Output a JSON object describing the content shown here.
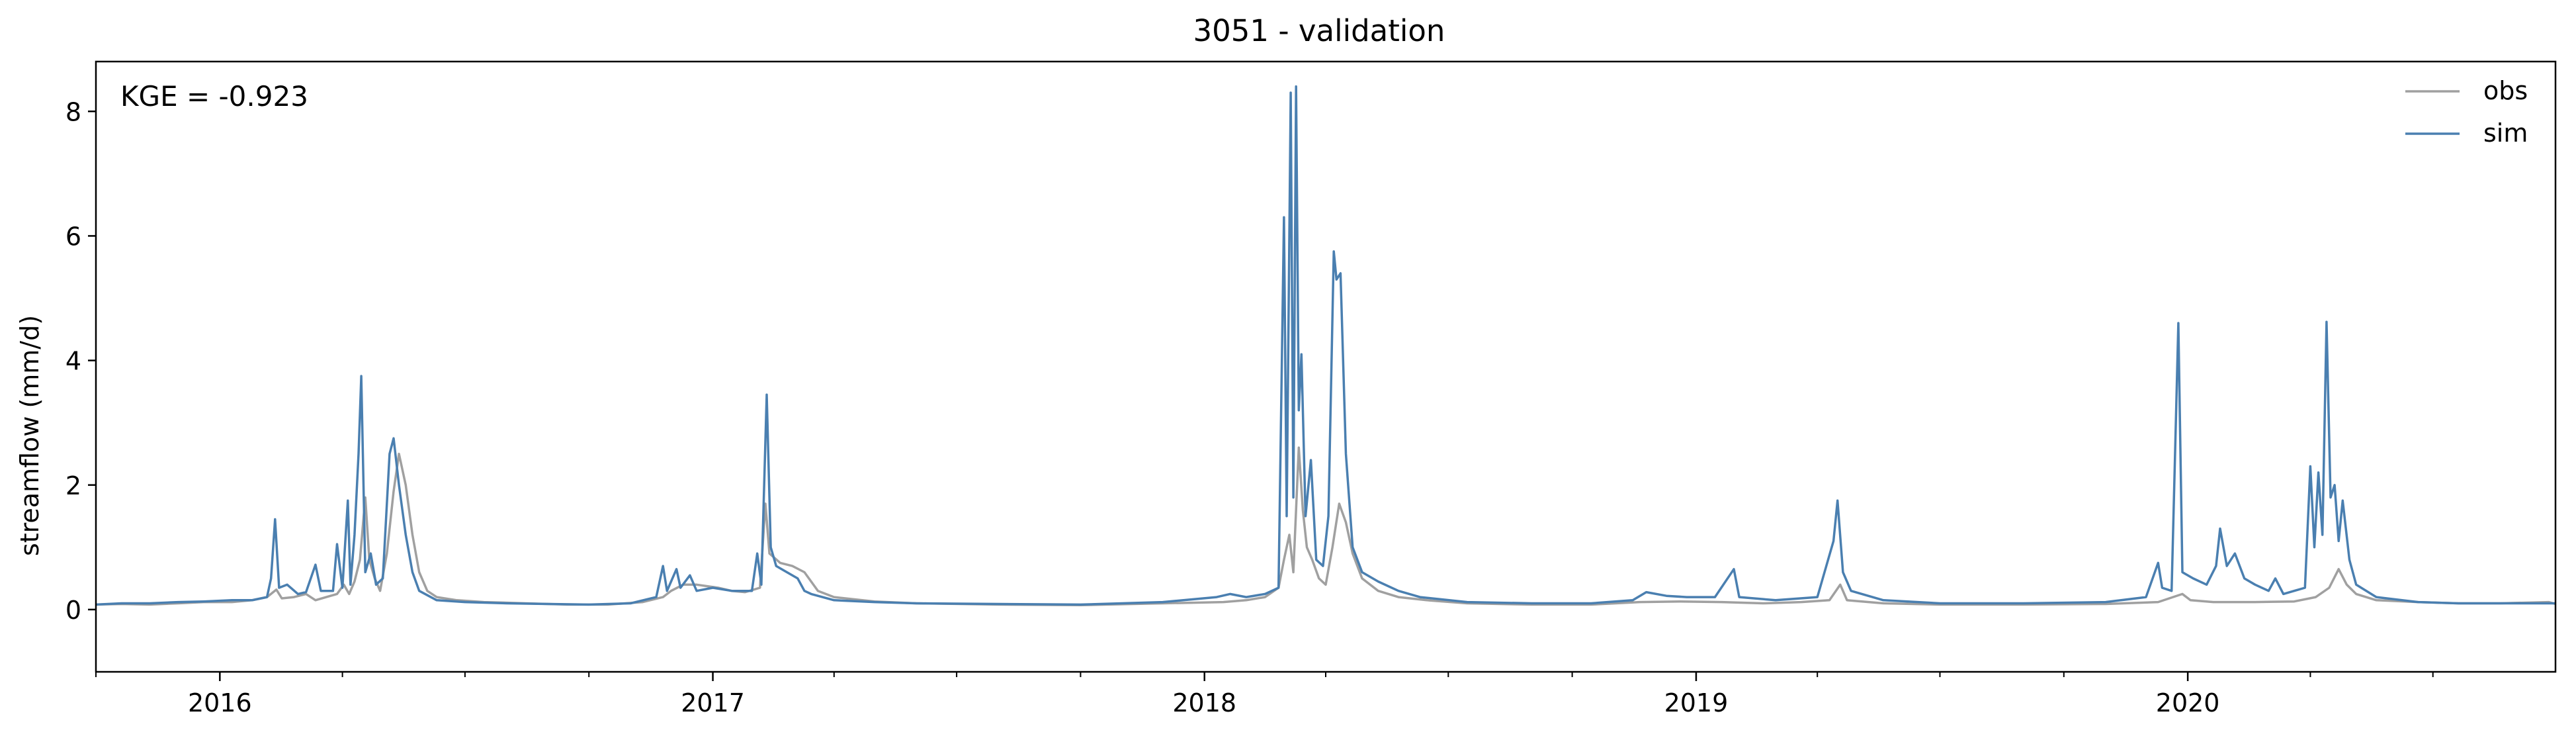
{
  "chart_data": {
    "type": "line",
    "title": "3051 - validation",
    "xlabel": "",
    "ylabel": "streamflow (mm/d)",
    "annotation": "KGE = -0.923",
    "xlim": [
      "2015-10-01",
      "2020-09-30"
    ],
    "ylim": [
      -1.0,
      8.8
    ],
    "yticks": [
      0,
      2,
      4,
      6,
      8
    ],
    "xticks": [
      {
        "date": "2016-01-01",
        "label": "2016"
      },
      {
        "date": "2017-01-01",
        "label": "2017"
      },
      {
        "date": "2018-01-01",
        "label": "2018"
      },
      {
        "date": "2019-01-01",
        "label": "2019"
      },
      {
        "date": "2020-01-01",
        "label": "2020"
      }
    ],
    "legend_position": "upper-right",
    "grid": false,
    "series": [
      {
        "name": "obs",
        "color": "#a0a0a0",
        "points": [
          [
            "2015-10-01",
            0.08
          ],
          [
            "2015-10-20",
            0.09
          ],
          [
            "2015-11-10",
            0.08
          ],
          [
            "2015-12-01",
            0.1
          ],
          [
            "2015-12-20",
            0.12
          ],
          [
            "2016-01-10",
            0.12
          ],
          [
            "2016-01-25",
            0.15
          ],
          [
            "2016-02-05",
            0.2
          ],
          [
            "2016-02-12",
            0.32
          ],
          [
            "2016-02-16",
            0.18
          ],
          [
            "2016-02-25",
            0.2
          ],
          [
            "2016-03-05",
            0.25
          ],
          [
            "2016-03-12",
            0.15
          ],
          [
            "2016-03-20",
            0.2
          ],
          [
            "2016-03-28",
            0.25
          ],
          [
            "2016-04-02",
            0.4
          ],
          [
            "2016-04-06",
            0.25
          ],
          [
            "2016-04-10",
            0.45
          ],
          [
            "2016-04-14",
            0.8
          ],
          [
            "2016-04-18",
            1.8
          ],
          [
            "2016-04-21",
            0.8
          ],
          [
            "2016-04-25",
            0.5
          ],
          [
            "2016-04-29",
            0.3
          ],
          [
            "2016-05-04",
            0.9
          ],
          [
            "2016-05-09",
            1.9
          ],
          [
            "2016-05-13",
            2.5
          ],
          [
            "2016-05-18",
            2.0
          ],
          [
            "2016-05-23",
            1.2
          ],
          [
            "2016-05-28",
            0.6
          ],
          [
            "2016-06-03",
            0.3
          ],
          [
            "2016-06-10",
            0.2
          ],
          [
            "2016-06-25",
            0.15
          ],
          [
            "2016-07-15",
            0.12
          ],
          [
            "2016-08-15",
            0.1
          ],
          [
            "2016-09-15",
            0.08
          ],
          [
            "2016-10-15",
            0.08
          ],
          [
            "2016-11-10",
            0.12
          ],
          [
            "2016-11-25",
            0.2
          ],
          [
            "2016-12-01",
            0.3
          ],
          [
            "2016-12-10",
            0.4
          ],
          [
            "2016-12-20",
            0.4
          ],
          [
            "2017-01-05",
            0.35
          ],
          [
            "2017-01-15",
            0.3
          ],
          [
            "2017-01-25",
            0.28
          ],
          [
            "2017-02-05",
            0.35
          ],
          [
            "2017-02-09",
            1.7
          ],
          [
            "2017-02-12",
            0.9
          ],
          [
            "2017-02-20",
            0.75
          ],
          [
            "2017-03-01",
            0.7
          ],
          [
            "2017-03-10",
            0.6
          ],
          [
            "2017-03-20",
            0.3
          ],
          [
            "2017-04-01",
            0.2
          ],
          [
            "2017-05-01",
            0.13
          ],
          [
            "2017-06-01",
            0.1
          ],
          [
            "2017-08-01",
            0.08
          ],
          [
            "2017-10-01",
            0.07
          ],
          [
            "2017-12-01",
            0.1
          ],
          [
            "2018-01-15",
            0.12
          ],
          [
            "2018-02-01",
            0.15
          ],
          [
            "2018-02-15",
            0.2
          ],
          [
            "2018-02-25",
            0.35
          ],
          [
            "2018-03-01",
            0.8
          ],
          [
            "2018-03-05",
            1.2
          ],
          [
            "2018-03-08",
            0.6
          ],
          [
            "2018-03-12",
            2.6
          ],
          [
            "2018-03-15",
            1.6
          ],
          [
            "2018-03-18",
            1.0
          ],
          [
            "2018-03-22",
            0.8
          ],
          [
            "2018-03-27",
            0.5
          ],
          [
            "2018-04-01",
            0.4
          ],
          [
            "2018-04-06",
            1.0
          ],
          [
            "2018-04-11",
            1.7
          ],
          [
            "2018-04-16",
            1.4
          ],
          [
            "2018-04-21",
            0.9
          ],
          [
            "2018-04-28",
            0.5
          ],
          [
            "2018-05-10",
            0.3
          ],
          [
            "2018-05-25",
            0.2
          ],
          [
            "2018-06-15",
            0.15
          ],
          [
            "2018-07-15",
            0.1
          ],
          [
            "2018-09-01",
            0.08
          ],
          [
            "2018-10-15",
            0.08
          ],
          [
            "2018-11-20",
            0.12
          ],
          [
            "2018-12-20",
            0.13
          ],
          [
            "2019-01-20",
            0.12
          ],
          [
            "2019-02-20",
            0.1
          ],
          [
            "2019-03-20",
            0.12
          ],
          [
            "2019-04-10",
            0.15
          ],
          [
            "2019-04-18",
            0.4
          ],
          [
            "2019-04-23",
            0.15
          ],
          [
            "2019-05-20",
            0.1
          ],
          [
            "2019-07-01",
            0.08
          ],
          [
            "2019-09-01",
            0.08
          ],
          [
            "2019-11-01",
            0.09
          ],
          [
            "2019-12-10",
            0.12
          ],
          [
            "2019-12-28",
            0.25
          ],
          [
            "2020-01-03",
            0.15
          ],
          [
            "2020-01-20",
            0.12
          ],
          [
            "2020-02-20",
            0.12
          ],
          [
            "2020-03-20",
            0.13
          ],
          [
            "2020-04-05",
            0.2
          ],
          [
            "2020-04-15",
            0.35
          ],
          [
            "2020-04-22",
            0.65
          ],
          [
            "2020-04-28",
            0.4
          ],
          [
            "2020-05-05",
            0.25
          ],
          [
            "2020-05-20",
            0.15
          ],
          [
            "2020-06-20",
            0.12
          ],
          [
            "2020-07-20",
            0.1
          ],
          [
            "2020-08-20",
            0.1
          ],
          [
            "2020-09-25",
            0.12
          ],
          [
            "2020-09-30",
            0.09
          ]
        ]
      },
      {
        "name": "sim",
        "color": "#4a7fb0",
        "points": [
          [
            "2015-10-01",
            0.08
          ],
          [
            "2015-10-20",
            0.1
          ],
          [
            "2015-11-10",
            0.1
          ],
          [
            "2015-12-01",
            0.12
          ],
          [
            "2015-12-20",
            0.13
          ],
          [
            "2016-01-10",
            0.15
          ],
          [
            "2016-01-25",
            0.15
          ],
          [
            "2016-02-05",
            0.2
          ],
          [
            "2016-02-08",
            0.5
          ],
          [
            "2016-02-11",
            1.45
          ],
          [
            "2016-02-14",
            0.35
          ],
          [
            "2016-02-20",
            0.4
          ],
          [
            "2016-02-28",
            0.25
          ],
          [
            "2016-03-05",
            0.28
          ],
          [
            "2016-03-12",
            0.72
          ],
          [
            "2016-03-16",
            0.3
          ],
          [
            "2016-03-25",
            0.3
          ],
          [
            "2016-03-28",
            1.05
          ],
          [
            "2016-04-01",
            0.35
          ],
          [
            "2016-04-05",
            1.75
          ],
          [
            "2016-04-07",
            0.4
          ],
          [
            "2016-04-10",
            1.2
          ],
          [
            "2016-04-13",
            2.5
          ],
          [
            "2016-04-15",
            3.75
          ],
          [
            "2016-04-18",
            0.6
          ],
          [
            "2016-04-22",
            0.9
          ],
          [
            "2016-04-26",
            0.4
          ],
          [
            "2016-05-01",
            0.5
          ],
          [
            "2016-05-06",
            2.5
          ],
          [
            "2016-05-09",
            2.75
          ],
          [
            "2016-05-13",
            2.0
          ],
          [
            "2016-05-18",
            1.2
          ],
          [
            "2016-05-23",
            0.6
          ],
          [
            "2016-05-28",
            0.3
          ],
          [
            "2016-06-10",
            0.15
          ],
          [
            "2016-07-01",
            0.12
          ],
          [
            "2016-08-01",
            0.1
          ],
          [
            "2016-09-01",
            0.09
          ],
          [
            "2016-10-01",
            0.08
          ],
          [
            "2016-11-01",
            0.1
          ],
          [
            "2016-11-20",
            0.2
          ],
          [
            "2016-11-25",
            0.7
          ],
          [
            "2016-11-28",
            0.3
          ],
          [
            "2016-12-05",
            0.65
          ],
          [
            "2016-12-08",
            0.35
          ],
          [
            "2016-12-15",
            0.55
          ],
          [
            "2016-12-20",
            0.3
          ],
          [
            "2017-01-01",
            0.35
          ],
          [
            "2017-01-15",
            0.3
          ],
          [
            "2017-01-30",
            0.3
          ],
          [
            "2017-02-03",
            0.9
          ],
          [
            "2017-02-06",
            0.4
          ],
          [
            "2017-02-10",
            3.45
          ],
          [
            "2017-02-13",
            1.0
          ],
          [
            "2017-02-17",
            0.7
          ],
          [
            "2017-02-25",
            0.6
          ],
          [
            "2017-03-05",
            0.5
          ],
          [
            "2017-03-10",
            0.3
          ],
          [
            "2017-03-15",
            0.25
          ],
          [
            "2017-04-01",
            0.15
          ],
          [
            "2017-05-01",
            0.12
          ],
          [
            "2017-06-01",
            0.1
          ],
          [
            "2017-08-01",
            0.09
          ],
          [
            "2017-10-01",
            0.08
          ],
          [
            "2017-12-01",
            0.12
          ],
          [
            "2018-01-10",
            0.2
          ],
          [
            "2018-01-20",
            0.25
          ],
          [
            "2018-02-01",
            0.2
          ],
          [
            "2018-02-15",
            0.25
          ],
          [
            "2018-02-25",
            0.35
          ],
          [
            "2018-03-01",
            6.3
          ],
          [
            "2018-03-03",
            1.5
          ],
          [
            "2018-03-06",
            8.3
          ],
          [
            "2018-03-08",
            1.8
          ],
          [
            "2018-03-10",
            8.4
          ],
          [
            "2018-03-12",
            3.2
          ],
          [
            "2018-03-14",
            4.1
          ],
          [
            "2018-03-17",
            1.5
          ],
          [
            "2018-03-21",
            2.4
          ],
          [
            "2018-03-25",
            0.8
          ],
          [
            "2018-03-30",
            0.7
          ],
          [
            "2018-04-03",
            1.5
          ],
          [
            "2018-04-07",
            5.75
          ],
          [
            "2018-04-09",
            5.3
          ],
          [
            "2018-04-12",
            5.4
          ],
          [
            "2018-04-16",
            2.5
          ],
          [
            "2018-04-21",
            1.0
          ],
          [
            "2018-04-28",
            0.6
          ],
          [
            "2018-05-10",
            0.45
          ],
          [
            "2018-05-25",
            0.3
          ],
          [
            "2018-06-10",
            0.2
          ],
          [
            "2018-07-15",
            0.12
          ],
          [
            "2018-09-01",
            0.1
          ],
          [
            "2018-10-15",
            0.1
          ],
          [
            "2018-11-15",
            0.15
          ],
          [
            "2018-11-25",
            0.28
          ],
          [
            "2018-12-10",
            0.22
          ],
          [
            "2018-12-25",
            0.2
          ],
          [
            "2019-01-15",
            0.2
          ],
          [
            "2019-01-29",
            0.65
          ],
          [
            "2019-02-02",
            0.2
          ],
          [
            "2019-03-01",
            0.15
          ],
          [
            "2019-04-01",
            0.2
          ],
          [
            "2019-04-13",
            1.1
          ],
          [
            "2019-04-16",
            1.75
          ],
          [
            "2019-04-20",
            0.6
          ],
          [
            "2019-04-26",
            0.3
          ],
          [
            "2019-05-20",
            0.15
          ],
          [
            "2019-07-01",
            0.1
          ],
          [
            "2019-09-01",
            0.1
          ],
          [
            "2019-11-01",
            0.12
          ],
          [
            "2019-12-01",
            0.2
          ],
          [
            "2019-12-10",
            0.75
          ],
          [
            "2019-12-13",
            0.35
          ],
          [
            "2019-12-20",
            0.3
          ],
          [
            "2019-12-25",
            4.6
          ],
          [
            "2019-12-28",
            0.6
          ],
          [
            "2020-01-05",
            0.5
          ],
          [
            "2020-01-15",
            0.4
          ],
          [
            "2020-01-22",
            0.7
          ],
          [
            "2020-01-25",
            1.3
          ],
          [
            "2020-01-30",
            0.7
          ],
          [
            "2020-02-05",
            0.9
          ],
          [
            "2020-02-12",
            0.5
          ],
          [
            "2020-02-20",
            0.4
          ],
          [
            "2020-03-01",
            0.3
          ],
          [
            "2020-03-06",
            0.5
          ],
          [
            "2020-03-12",
            0.25
          ],
          [
            "2020-03-20",
            0.3
          ],
          [
            "2020-03-28",
            0.35
          ],
          [
            "2020-04-01",
            2.3
          ],
          [
            "2020-04-04",
            1.0
          ],
          [
            "2020-04-07",
            2.2
          ],
          [
            "2020-04-10",
            1.2
          ],
          [
            "2020-04-13",
            4.62
          ],
          [
            "2020-04-16",
            1.8
          ],
          [
            "2020-04-19",
            2.0
          ],
          [
            "2020-04-22",
            1.1
          ],
          [
            "2020-04-25",
            1.75
          ],
          [
            "2020-04-30",
            0.8
          ],
          [
            "2020-05-05",
            0.4
          ],
          [
            "2020-05-20",
            0.2
          ],
          [
            "2020-06-20",
            0.12
          ],
          [
            "2020-07-20",
            0.1
          ],
          [
            "2020-08-20",
            0.1
          ],
          [
            "2020-09-30",
            0.1
          ]
        ]
      }
    ]
  }
}
